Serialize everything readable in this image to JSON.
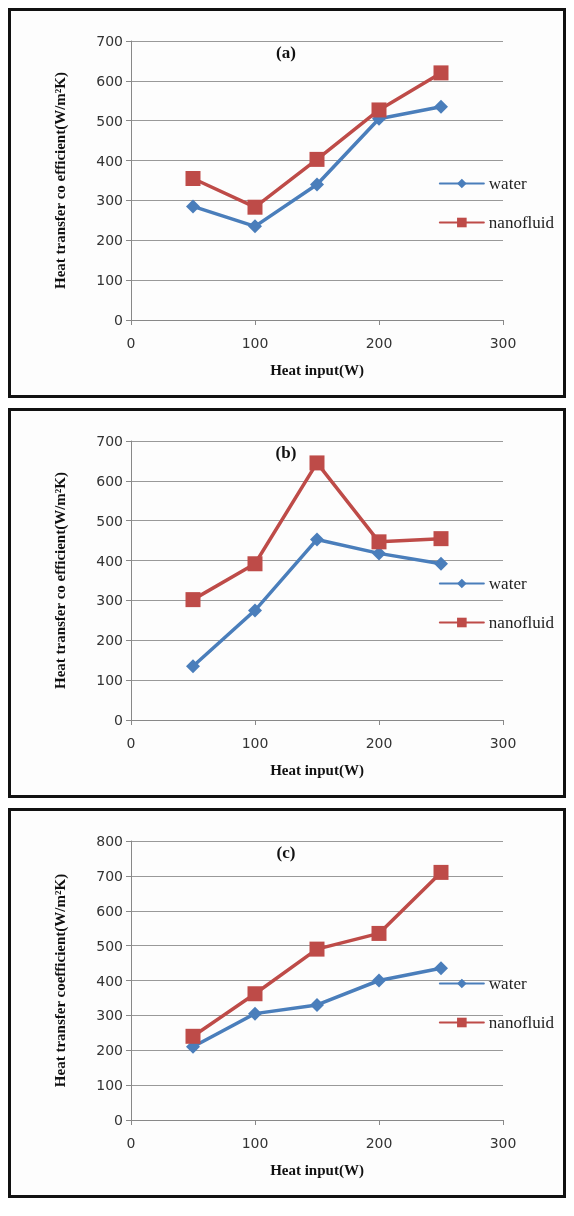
{
  "chart_data": [
    {
      "type": "line",
      "title": "(a)",
      "xlabel": "Heat input(W)",
      "ylabel": "Heat transfer co efficient(W/m²K)",
      "x": [
        50,
        100,
        150,
        200,
        250
      ],
      "xlim": [
        0,
        300
      ],
      "xticks": [
        0,
        100,
        200,
        300
      ],
      "ylim": [
        0,
        700
      ],
      "yticks": [
        0,
        100,
        200,
        300,
        400,
        500,
        600,
        700
      ],
      "grid": "y",
      "legend": "right",
      "line_style": "solid",
      "series": [
        {
          "name": "water",
          "color": "#4a7ebb",
          "marker": "diamond",
          "values": [
            285,
            235,
            340,
            505,
            535
          ]
        },
        {
          "name": "nanofluid",
          "color": "#be4b48",
          "marker": "square",
          "values": [
            355,
            283,
            403,
            527,
            620
          ]
        }
      ]
    },
    {
      "type": "line",
      "title": "(b)",
      "xlabel": "Heat input(W)",
      "ylabel": "Heat transfer co efficient(W/m²K)",
      "x": [
        50,
        100,
        150,
        200,
        250
      ],
      "xlim": [
        0,
        300
      ],
      "xticks": [
        0,
        100,
        200,
        300
      ],
      "ylim": [
        0,
        700
      ],
      "yticks": [
        0,
        100,
        200,
        300,
        400,
        500,
        600,
        700
      ],
      "grid": "y",
      "legend": "right",
      "line_style": "solid",
      "series": [
        {
          "name": "water",
          "color": "#4a7ebb",
          "marker": "diamond",
          "values": [
            135,
            275,
            453,
            418,
            392
          ]
        },
        {
          "name": "nanofluid",
          "color": "#be4b48",
          "marker": "square",
          "values": [
            302,
            392,
            645,
            447,
            455
          ]
        }
      ]
    },
    {
      "type": "line",
      "title": "(c)",
      "xlabel": "Heat input(W)",
      "ylabel": "Heat transfer coefficient(W/m²K)",
      "x": [
        50,
        100,
        150,
        200,
        250
      ],
      "xlim": [
        0,
        300
      ],
      "xticks": [
        0,
        100,
        200,
        300
      ],
      "ylim": [
        0,
        800
      ],
      "yticks": [
        0,
        100,
        200,
        300,
        400,
        500,
        600,
        700,
        800
      ],
      "grid": "y",
      "legend": "right",
      "line_style": "solid",
      "series": [
        {
          "name": "water",
          "color": "#4a7ebb",
          "marker": "diamond",
          "values": [
            210,
            305,
            330,
            400,
            435
          ]
        },
        {
          "name": "nanofluid",
          "color": "#be4b48",
          "marker": "square",
          "values": [
            240,
            362,
            490,
            535,
            710
          ]
        }
      ]
    }
  ]
}
